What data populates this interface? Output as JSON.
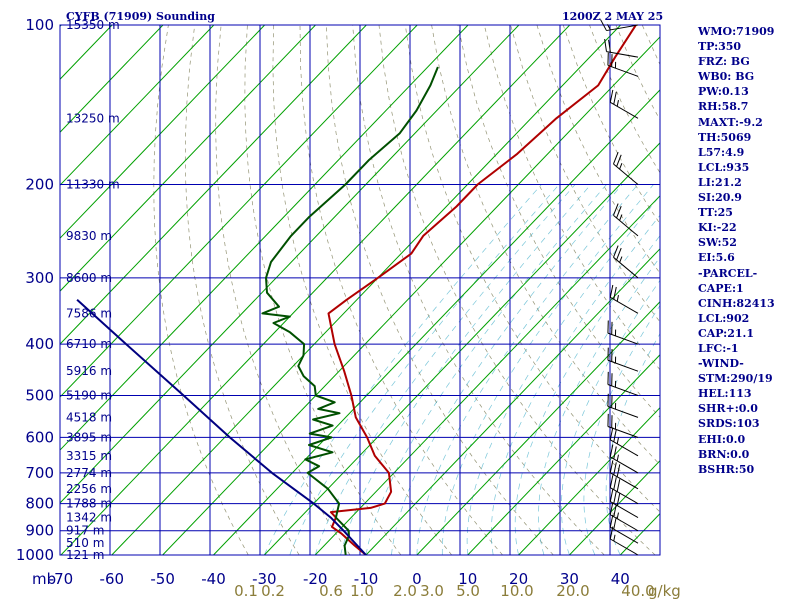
{
  "chart_data": {
    "type": "line",
    "title": "CYFB (71909) Sounding",
    "datetime": "1200Z  2 MAY 25",
    "x_unit_label": "mb",
    "mixing_ratio_unit": "g/kg",
    "pressure_axis": {
      "scale": "log",
      "range": [
        1000,
        100
      ],
      "ticks": [
        100,
        200,
        300,
        400,
        500,
        600,
        700,
        800,
        900,
        1000
      ]
    },
    "temperature_axis": {
      "range": [
        -80,
        40
      ],
      "ticks": [
        -80,
        -70,
        -60,
        -50,
        -40,
        -30,
        -20,
        -10,
        0,
        10,
        20,
        30,
        40
      ],
      "skewed": true
    },
    "height_labels": [
      {
        "p": 100,
        "label": "15350 m"
      },
      {
        "p": 150,
        "label": "13250 m"
      },
      {
        "p": 200,
        "label": "11330 m"
      },
      {
        "p": 250,
        "label": "9830 m"
      },
      {
        "p": 300,
        "label": "8600 m"
      },
      {
        "p": 350,
        "label": "7586 m"
      },
      {
        "p": 400,
        "label": "6710 m"
      },
      {
        "p": 450,
        "label": "5916 m"
      },
      {
        "p": 500,
        "label": "5190 m"
      },
      {
        "p": 550,
        "label": "4518 m"
      },
      {
        "p": 600,
        "label": "3895 m"
      },
      {
        "p": 650,
        "label": "3315 m"
      },
      {
        "p": 700,
        "label": "2774 m"
      },
      {
        "p": 750,
        "label": "2256 m"
      },
      {
        "p": 800,
        "label": "1788 m"
      },
      {
        "p": 850,
        "label": "1342 m"
      },
      {
        "p": 900,
        "label": "917 m"
      },
      {
        "p": 950,
        "label": "510 m"
      },
      {
        "p": 1000,
        "label": "121 m"
      }
    ],
    "mixing_ratio_labels": [
      "0.1",
      "0.2",
      "0.6",
      "1.0",
      "2.0",
      "3.0",
      "5.0",
      "10.0",
      "20.0",
      "40.0"
    ],
    "series": [
      {
        "name": "",
        "color": "#b00000",
        "points": [
          [
            1000,
            -10
          ],
          [
            960,
            -14
          ],
          [
            910,
            -19
          ],
          [
            885,
            -22
          ],
          [
            850,
            -23
          ],
          [
            830,
            -25
          ],
          [
            815,
            -18
          ],
          [
            800,
            -16
          ],
          [
            760,
            -17
          ],
          [
            700,
            -21
          ],
          [
            650,
            -27
          ],
          [
            600,
            -32
          ],
          [
            550,
            -38
          ],
          [
            500,
            -43
          ],
          [
            450,
            -49
          ],
          [
            400,
            -56
          ],
          [
            350,
            -63
          ],
          [
            330,
            -62
          ],
          [
            300,
            -60
          ],
          [
            270,
            -58
          ],
          [
            250,
            -59
          ],
          [
            220,
            -58
          ],
          [
            200,
            -58
          ],
          [
            175,
            -56
          ],
          [
            150,
            -55
          ],
          [
            130,
            -53
          ],
          [
            115,
            -55
          ],
          [
            100,
            -57
          ]
        ]
      },
      {
        "name": "",
        "color": "#005000",
        "points": [
          [
            1000,
            -14
          ],
          [
            960,
            -16
          ],
          [
            920,
            -17
          ],
          [
            900,
            -18
          ],
          [
            850,
            -23
          ],
          [
            800,
            -25
          ],
          [
            750,
            -30
          ],
          [
            700,
            -37
          ],
          [
            680,
            -36
          ],
          [
            660,
            -40
          ],
          [
            640,
            -36
          ],
          [
            620,
            -42
          ],
          [
            600,
            -39
          ],
          [
            590,
            -44
          ],
          [
            570,
            -41
          ],
          [
            555,
            -46
          ],
          [
            540,
            -42
          ],
          [
            530,
            -47
          ],
          [
            515,
            -45
          ],
          [
            500,
            -50
          ],
          [
            480,
            -52
          ],
          [
            460,
            -56
          ],
          [
            440,
            -59
          ],
          [
            420,
            -60
          ],
          [
            400,
            -62
          ],
          [
            380,
            -67
          ],
          [
            365,
            -72
          ],
          [
            355,
            -70
          ],
          [
            350,
            -76
          ],
          [
            340,
            -74
          ],
          [
            320,
            -79
          ],
          [
            300,
            -82
          ],
          [
            280,
            -84
          ],
          [
            250,
            -85
          ],
          [
            230,
            -85
          ],
          [
            200,
            -84
          ],
          [
            180,
            -84
          ],
          [
            160,
            -83
          ],
          [
            145,
            -84
          ],
          [
            130,
            -86
          ],
          [
            120,
            -88
          ]
        ]
      },
      {
        "name": "",
        "color": "#000080",
        "points": [
          [
            1000,
            -10
          ],
          [
            900,
            -19
          ],
          [
            850,
            -24
          ],
          [
            800,
            -30
          ],
          [
            700,
            -44
          ],
          [
            600,
            -59
          ],
          [
            500,
            -76
          ],
          [
            400,
            -97
          ],
          [
            330,
            -115
          ]
        ]
      }
    ],
    "wind_barbs": [
      {
        "p": 1000,
        "dir": 300,
        "spd": 15
      },
      {
        "p": 950,
        "dir": 300,
        "spd": 20
      },
      {
        "p": 900,
        "dir": 300,
        "spd": 25
      },
      {
        "p": 850,
        "dir": 300,
        "spd": 30
      },
      {
        "p": 800,
        "dir": 300,
        "spd": 30
      },
      {
        "p": 750,
        "dir": 300,
        "spd": 30
      },
      {
        "p": 700,
        "dir": 300,
        "spd": 25
      },
      {
        "p": 650,
        "dir": 300,
        "spd": 25
      },
      {
        "p": 600,
        "dir": 290,
        "spd": 25
      },
      {
        "p": 550,
        "dir": 290,
        "spd": 25
      },
      {
        "p": 500,
        "dir": 290,
        "spd": 25
      },
      {
        "p": 450,
        "dir": 290,
        "spd": 25
      },
      {
        "p": 400,
        "dir": 290,
        "spd": 25
      },
      {
        "p": 350,
        "dir": 300,
        "spd": 25
      },
      {
        "p": 300,
        "dir": 310,
        "spd": 25
      },
      {
        "p": 250,
        "dir": 310,
        "spd": 25
      },
      {
        "p": 200,
        "dir": 310,
        "spd": 25
      },
      {
        "p": 150,
        "dir": 300,
        "spd": 25
      },
      {
        "p": 125,
        "dir": 290,
        "spd": 25
      },
      {
        "p": 115,
        "dir": 280,
        "spd": 20
      },
      {
        "p": 100,
        "dir": 260,
        "spd": 15
      }
    ]
  },
  "indices": [
    "WMO:71909",
    "TP:350",
    "FRZ: BG",
    "WB0: BG",
    "PW:0.13",
    "RH:58.7",
    "MAXT:-9.2",
    "TH:5069",
    "L57:4.9",
    "LCL:935",
    "LI:21.2",
    "SI:20.9",
    "TT:25",
    "KI:-22",
    "SW:52",
    "EI:5.6",
    "-PARCEL-",
    "CAPE:1",
    "CINH:82413",
    "LCL:902",
    "CAP:21.1",
    "LFC:-1",
    "-WIND-",
    "STM:290/19",
    "HEL:113",
    "SHR+:0.0",
    "SRDS:103",
    "EHI:0.0",
    "BRN:0.0",
    "BSHR:50"
  ]
}
